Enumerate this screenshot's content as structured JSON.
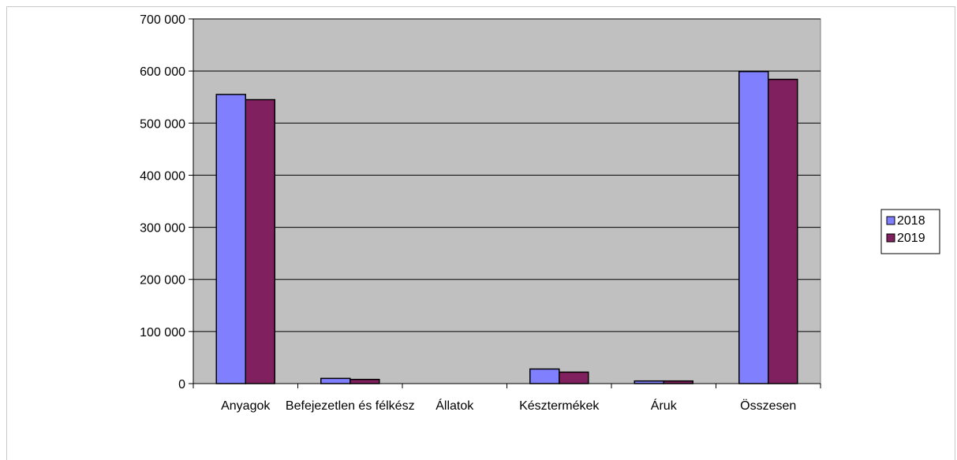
{
  "chart_data": {
    "type": "bar",
    "categories": [
      "Anyagok",
      "Befejezetlen és félkész",
      "Állatok",
      "Késztermékek",
      "Áruk",
      "Összesen"
    ],
    "series": [
      {
        "name": "2018",
        "values": [
          555000,
          10000,
          0,
          28000,
          5000,
          599000
        ],
        "color": "#8080ff"
      },
      {
        "name": "2019",
        "values": [
          545000,
          8000,
          0,
          22000,
          5000,
          584000
        ],
        "color": "#80205e"
      }
    ],
    "ylim": [
      0,
      700000
    ],
    "yticks": [
      0,
      100000,
      200000,
      300000,
      400000,
      500000,
      600000,
      700000
    ],
    "ytick_labels": [
      "0",
      "100 000",
      "200 000",
      "300 000",
      "400 000",
      "500 000",
      "600 000",
      "700 000"
    ],
    "grid": true,
    "plot_background": "#c0c0c0",
    "legend_position": "right"
  }
}
